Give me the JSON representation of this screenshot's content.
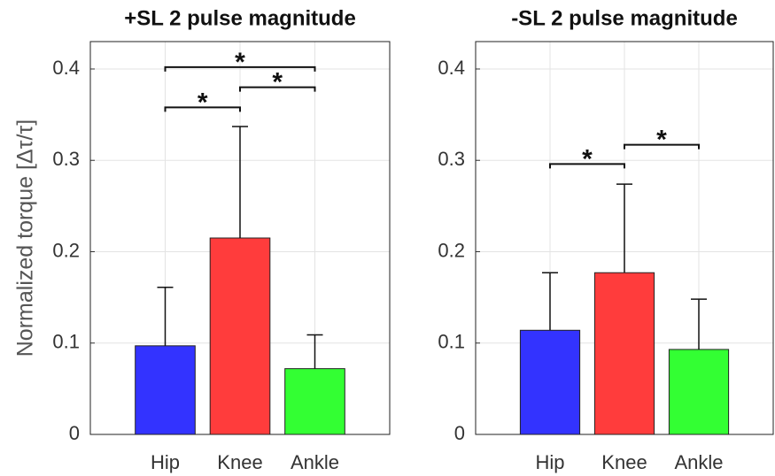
{
  "chart_data": [
    {
      "type": "bar",
      "title": "+SL 2 pulse magnitude",
      "ylabel": "Normalized torque [Δτ/τ]",
      "categories": [
        "Hip",
        "Knee",
        "Ankle"
      ],
      "values": [
        0.097,
        0.215,
        0.072
      ],
      "errors": [
        0.064,
        0.122,
        0.037
      ],
      "colors": [
        "#3333ff",
        "#ff3c3c",
        "#33ff33"
      ],
      "xlim": [
        0,
        4
      ],
      "ylim": [
        0,
        0.43
      ],
      "yticks": [
        0,
        0.1,
        0.2,
        0.3,
        0.4
      ],
      "grid": true,
      "significance": [
        {
          "pair": [
            "Hip",
            "Ankle"
          ],
          "y": 0.402,
          "label": "*"
        },
        {
          "pair": [
            "Knee",
            "Ankle"
          ],
          "y": 0.38,
          "label": "*"
        },
        {
          "pair": [
            "Hip",
            "Knee"
          ],
          "y": 0.358,
          "label": "*"
        }
      ]
    },
    {
      "type": "bar",
      "title": "-SL 2 pulse magnitude",
      "categories": [
        "Hip",
        "Knee",
        "Ankle"
      ],
      "values": [
        0.114,
        0.177,
        0.093
      ],
      "errors": [
        0.063,
        0.097,
        0.055
      ],
      "colors": [
        "#3333ff",
        "#ff3c3c",
        "#33ff33"
      ],
      "xlim": [
        0,
        4
      ],
      "ylim": [
        0,
        0.43
      ],
      "yticks": [
        0,
        0.1,
        0.2,
        0.3,
        0.4
      ],
      "grid": true,
      "significance": [
        {
          "pair": [
            "Knee",
            "Ankle"
          ],
          "y": 0.317,
          "label": "*"
        },
        {
          "pair": [
            "Hip",
            "Knee"
          ],
          "y": 0.296,
          "label": "*"
        }
      ]
    }
  ]
}
